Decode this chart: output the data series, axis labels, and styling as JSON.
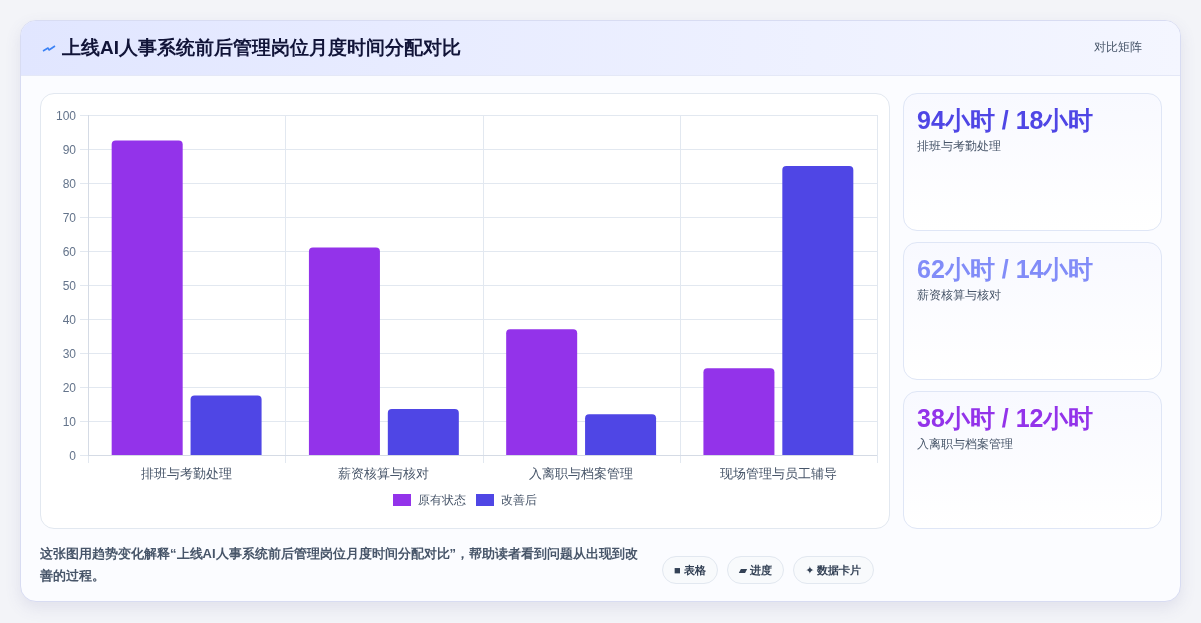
{
  "chart_data": [
    {
      "type": "bar",
      "title": "上线AI人事系统前后管理岗位月度时间分配对比",
      "categories": [
        "排班与考勤处理",
        "薪资核算与核对",
        "入离职与档案管理",
        "现场管理与员工辅导"
      ],
      "series": [
        {
          "name": "原有状态",
          "color": "#9333ea",
          "values": [
            92.5,
            61,
            37,
            25.5
          ]
        },
        {
          "name": "改善后",
          "color": "#4f46e5",
          "values": [
            17.5,
            13.5,
            12,
            85
          ]
        }
      ],
      "ylim": [
        0,
        100
      ],
      "yticks": [
        0,
        10,
        20,
        30,
        40,
        50,
        60,
        70,
        80,
        90,
        100
      ],
      "grid": true,
      "legend": "bottom",
      "annotations": [
        "这张图用趋势变化解释“上线AI人事系统前后管理岗位月度时间分配对比”，帮助读者看到问题从出现到改善的过程。",
        "■ 表格",
        "▰ 进度",
        "✦ 数据卡片"
      ]
    },
    {
      "type": "other",
      "title": "94小时 / 18小时",
      "subtitle": "排班与考勤处理",
      "color": "#4f46e5",
      "annotations": [
        "对比矩阵"
      ]
    },
    {
      "type": "other",
      "title": "62小时 / 14小时",
      "subtitle": "薪资核算与核对",
      "color": "#818cf8"
    },
    {
      "type": "other",
      "title": "38小时 / 12小时",
      "subtitle": "入离职与档案管理",
      "color": "#9333ea"
    }
  ]
}
